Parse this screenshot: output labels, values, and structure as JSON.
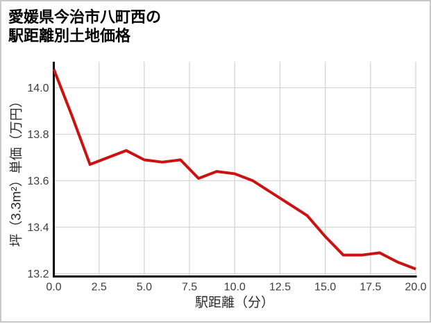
{
  "header": {
    "title_line1": "愛媛県今治市八町西の",
    "title_line2": "駅距離別土地価格"
  },
  "chart_data": {
    "type": "line",
    "title": "愛媛県今治市八町西の駅距離別土地価格",
    "xlabel": "駅距離（分）",
    "ylabel": "坪（3.3m²）単価（万円）",
    "series": [
      {
        "name": "駅距離別土地価格",
        "x": [
          0,
          1,
          2,
          3,
          4,
          5,
          6,
          7,
          8,
          9,
          10,
          11,
          12,
          13,
          14,
          15,
          16,
          17,
          18,
          19,
          20
        ],
        "y": [
          14.08,
          13.88,
          13.67,
          13.7,
          13.73,
          13.69,
          13.68,
          13.69,
          13.61,
          13.64,
          13.63,
          13.6,
          13.55,
          13.5,
          13.45,
          13.36,
          13.28,
          13.28,
          13.29,
          13.25,
          13.22
        ]
      }
    ],
    "xlim": [
      0,
      20
    ],
    "ylim": [
      13.188,
      14.112
    ],
    "xticks": [
      0,
      2.5,
      5,
      7.5,
      10,
      12.5,
      15,
      17.5,
      20
    ],
    "yticks": [
      13.2,
      13.4,
      13.6,
      13.8,
      14.0
    ],
    "grid": true,
    "legend": "none",
    "line_color": "#cc1111",
    "grid_color": "#d5d5d5",
    "axis_color": "#000000",
    "tick_label_color": "#3d3d3d"
  }
}
